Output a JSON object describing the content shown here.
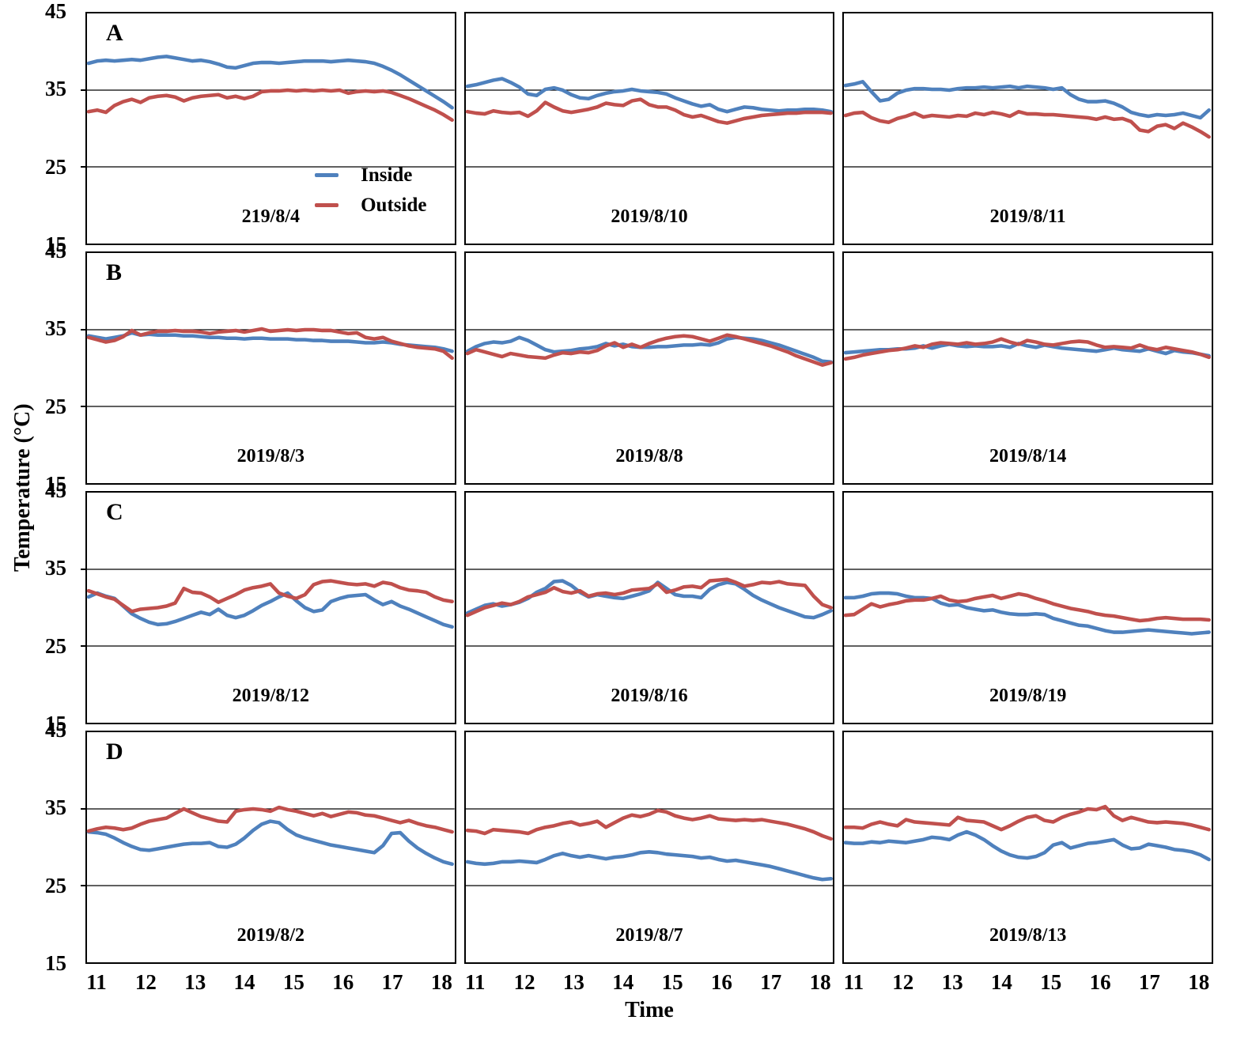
{
  "figure": {
    "y_axis_label": "Temperature (°C)",
    "x_axis_label": "Time"
  },
  "axis": {
    "y_ticks": [
      "45",
      "35",
      "25",
      "15"
    ],
    "x_ticks": [
      "11",
      "12",
      "13",
      "14",
      "15",
      "16",
      "17",
      "18"
    ],
    "gridlines": [
      35,
      25
    ],
    "ylim": [
      15,
      45
    ]
  },
  "legend": {
    "panel_index": 0,
    "items": [
      {
        "label": "Inside",
        "color": "#4F81BD"
      },
      {
        "label": "Outside",
        "color": "#C0504D"
      }
    ]
  },
  "chart_data": {
    "type": "line",
    "title": "",
    "xlabel": "Time",
    "ylabel": "Temperature (°C)",
    "ylim": [
      15,
      45
    ],
    "x_hours_range": [
      11,
      18
    ],
    "sample_interval_minutes": 10,
    "grid": "horizontal lines at 35 and 25",
    "legend_position": "inside panel A (first), lower right",
    "series_names": [
      "Inside",
      "Outside"
    ],
    "panels": [
      {
        "label": "A",
        "date": "219/8/4",
        "inside": [
          38.5,
          38.8,
          38.9,
          38.8,
          38.9,
          39.0,
          38.9,
          39.1,
          39.3,
          39.4,
          39.2,
          39.0,
          38.8,
          38.9,
          38.7,
          38.4,
          38.0,
          37.9,
          38.2,
          38.5,
          38.6,
          38.6,
          38.5,
          38.6,
          38.7,
          38.8,
          38.8,
          38.8,
          38.7,
          38.8,
          38.9,
          38.8,
          38.7,
          38.5,
          38.1,
          37.6,
          37.0,
          36.3,
          35.6,
          34.9,
          34.2,
          33.5,
          32.7
        ],
        "outside": [
          32.2,
          32.4,
          32.1,
          33.0,
          33.5,
          33.8,
          33.4,
          34.0,
          34.2,
          34.3,
          34.1,
          33.6,
          34.0,
          34.2,
          34.3,
          34.4,
          34.0,
          34.2,
          33.9,
          34.2,
          34.8,
          34.9,
          34.9,
          35.0,
          34.9,
          35.0,
          34.9,
          35.0,
          34.9,
          35.0,
          34.6,
          34.8,
          34.9,
          34.8,
          34.9,
          34.7,
          34.3,
          33.9,
          33.4,
          32.9,
          32.4,
          31.8,
          31.1
        ]
      },
      {
        "label": "",
        "date": "2019/8/10",
        "inside": [
          35.5,
          35.7,
          36.0,
          36.3,
          36.5,
          36.0,
          35.4,
          34.5,
          34.3,
          35.1,
          35.3,
          35.0,
          34.4,
          34.0,
          33.9,
          34.3,
          34.6,
          34.8,
          34.9,
          35.1,
          34.9,
          34.8,
          34.7,
          34.5,
          34.0,
          33.6,
          33.2,
          32.9,
          33.1,
          32.5,
          32.2,
          32.5,
          32.8,
          32.7,
          32.5,
          32.4,
          32.3,
          32.4,
          32.4,
          32.5,
          32.5,
          32.4,
          32.2
        ],
        "outside": [
          32.2,
          32.0,
          31.9,
          32.3,
          32.1,
          32.0,
          32.1,
          31.6,
          32.3,
          33.4,
          32.8,
          32.3,
          32.1,
          32.3,
          32.5,
          32.8,
          33.3,
          33.1,
          33.0,
          33.6,
          33.8,
          33.1,
          32.8,
          32.8,
          32.4,
          31.8,
          31.5,
          31.7,
          31.3,
          30.9,
          30.7,
          31.0,
          31.3,
          31.5,
          31.7,
          31.8,
          31.9,
          32.0,
          32.0,
          32.1,
          32.1,
          32.1,
          32.0
        ]
      },
      {
        "label": "",
        "date": "2019/8/11",
        "inside": [
          35.6,
          35.8,
          36.1,
          34.8,
          33.6,
          33.8,
          34.6,
          35.0,
          35.2,
          35.2,
          35.1,
          35.1,
          35.0,
          35.2,
          35.3,
          35.3,
          35.4,
          35.3,
          35.4,
          35.5,
          35.3,
          35.5,
          35.4,
          35.3,
          35.1,
          35.3,
          34.4,
          33.8,
          33.5,
          33.5,
          33.6,
          33.3,
          32.8,
          32.1,
          31.8,
          31.6,
          31.8,
          31.7,
          31.8,
          32.0,
          31.7,
          31.4,
          32.4
        ],
        "outside": [
          31.7,
          32.0,
          32.1,
          31.4,
          31.0,
          30.8,
          31.3,
          31.6,
          32.0,
          31.5,
          31.7,
          31.6,
          31.5,
          31.7,
          31.6,
          32.0,
          31.8,
          32.1,
          31.9,
          31.6,
          32.2,
          31.9,
          31.9,
          31.8,
          31.8,
          31.7,
          31.6,
          31.5,
          31.4,
          31.2,
          31.5,
          31.2,
          31.3,
          30.9,
          29.8,
          29.6,
          30.3,
          30.5,
          30.0,
          30.7,
          30.2,
          29.6,
          28.9
        ]
      },
      {
        "label": "B",
        "date": "2019/8/3",
        "inside": [
          34.2,
          34.0,
          33.8,
          34.0,
          34.2,
          34.6,
          34.3,
          34.4,
          34.3,
          34.3,
          34.3,
          34.2,
          34.2,
          34.1,
          34.0,
          34.0,
          33.9,
          33.9,
          33.8,
          33.9,
          33.9,
          33.8,
          33.8,
          33.8,
          33.7,
          33.7,
          33.6,
          33.6,
          33.5,
          33.5,
          33.5,
          33.4,
          33.3,
          33.3,
          33.4,
          33.3,
          33.1,
          33.0,
          32.9,
          32.8,
          32.7,
          32.5,
          32.2
        ],
        "outside": [
          34.0,
          33.7,
          33.4,
          33.6,
          34.1,
          34.9,
          34.3,
          34.6,
          34.8,
          34.8,
          34.9,
          34.8,
          34.8,
          34.7,
          34.5,
          34.7,
          34.8,
          34.9,
          34.7,
          34.9,
          35.1,
          34.8,
          34.9,
          35.0,
          34.9,
          35.0,
          35.0,
          34.9,
          34.9,
          34.7,
          34.5,
          34.6,
          34.0,
          33.8,
          34.0,
          33.5,
          33.2,
          32.9,
          32.7,
          32.6,
          32.5,
          32.2,
          31.3
        ]
      },
      {
        "label": "",
        "date": "2019/8/8",
        "inside": [
          32.2,
          32.8,
          33.2,
          33.4,
          33.3,
          33.5,
          34.0,
          33.6,
          33.0,
          32.4,
          32.1,
          32.2,
          32.3,
          32.5,
          32.6,
          32.8,
          33.2,
          32.9,
          33.1,
          32.8,
          32.7,
          32.7,
          32.8,
          32.8,
          32.9,
          33.0,
          33.0,
          33.1,
          33.0,
          33.3,
          33.8,
          34.0,
          33.9,
          33.8,
          33.6,
          33.3,
          33.0,
          32.6,
          32.2,
          31.8,
          31.4,
          30.9,
          30.8
        ],
        "outside": [
          31.9,
          32.4,
          32.1,
          31.8,
          31.5,
          31.9,
          31.7,
          31.5,
          31.4,
          31.3,
          31.7,
          32.0,
          31.9,
          32.1,
          32.0,
          32.3,
          32.9,
          33.3,
          32.7,
          33.1,
          32.7,
          33.2,
          33.6,
          33.9,
          34.1,
          34.2,
          34.1,
          33.8,
          33.5,
          33.9,
          34.3,
          34.1,
          33.8,
          33.5,
          33.2,
          32.9,
          32.5,
          32.1,
          31.6,
          31.2,
          30.8,
          30.4,
          30.7
        ]
      },
      {
        "label": "",
        "date": "2019/8/14",
        "inside": [
          32.0,
          32.1,
          32.2,
          32.3,
          32.4,
          32.4,
          32.5,
          32.5,
          32.6,
          32.9,
          32.6,
          32.9,
          33.1,
          32.9,
          32.8,
          32.9,
          32.8,
          32.8,
          32.9,
          32.7,
          33.2,
          32.9,
          32.7,
          33.0,
          32.8,
          32.6,
          32.5,
          32.4,
          32.3,
          32.2,
          32.4,
          32.6,
          32.4,
          32.3,
          32.2,
          32.5,
          32.2,
          31.9,
          32.3,
          32.1,
          32.0,
          31.8,
          31.6
        ],
        "outside": [
          31.2,
          31.4,
          31.7,
          31.9,
          32.1,
          32.3,
          32.4,
          32.6,
          32.9,
          32.7,
          33.1,
          33.3,
          33.2,
          33.1,
          33.3,
          33.1,
          33.2,
          33.4,
          33.8,
          33.4,
          33.1,
          33.6,
          33.4,
          33.1,
          33.0,
          33.2,
          33.4,
          33.5,
          33.4,
          33.0,
          32.7,
          32.8,
          32.7,
          32.6,
          33.0,
          32.6,
          32.4,
          32.7,
          32.5,
          32.3,
          32.1,
          31.8,
          31.4
        ]
      },
      {
        "label": "C",
        "date": "2019/8/12",
        "inside": [
          31.4,
          31.9,
          31.5,
          31.2,
          30.2,
          29.2,
          28.6,
          28.1,
          27.8,
          27.9,
          28.2,
          28.6,
          29.0,
          29.4,
          29.1,
          29.8,
          29.0,
          28.7,
          29.0,
          29.6,
          30.3,
          30.8,
          31.4,
          31.9,
          30.9,
          30.0,
          29.5,
          29.7,
          30.8,
          31.2,
          31.5,
          31.6,
          31.7,
          31.0,
          30.4,
          30.8,
          30.2,
          29.8,
          29.3,
          28.8,
          28.3,
          27.8,
          27.5
        ],
        "outside": [
          32.2,
          31.8,
          31.4,
          31.1,
          30.3,
          29.5,
          29.8,
          29.9,
          30.0,
          30.2,
          30.6,
          32.5,
          32.0,
          31.9,
          31.4,
          30.7,
          31.2,
          31.7,
          32.3,
          32.6,
          32.8,
          33.1,
          31.9,
          31.5,
          31.2,
          31.7,
          33.0,
          33.4,
          33.5,
          33.3,
          33.1,
          33.0,
          33.1,
          32.8,
          33.3,
          33.1,
          32.6,
          32.3,
          32.2,
          32.0,
          31.4,
          31.0,
          30.8
        ]
      },
      {
        "label": "",
        "date": "2019/8/16",
        "inside": [
          29.3,
          29.8,
          30.3,
          30.5,
          30.2,
          30.4,
          30.7,
          31.2,
          32.0,
          32.5,
          33.4,
          33.5,
          32.9,
          32.0,
          31.4,
          31.7,
          31.5,
          31.3,
          31.2,
          31.5,
          31.8,
          32.2,
          33.3,
          32.5,
          31.7,
          31.5,
          31.5,
          31.3,
          32.4,
          33.0,
          33.3,
          33.1,
          32.4,
          31.6,
          31.0,
          30.5,
          30.0,
          29.6,
          29.2,
          28.8,
          28.7,
          29.1,
          29.6
        ],
        "outside": [
          29.0,
          29.5,
          30.0,
          30.3,
          30.6,
          30.4,
          30.8,
          31.4,
          31.7,
          32.0,
          32.6,
          32.1,
          31.9,
          32.2,
          31.5,
          31.8,
          31.9,
          31.7,
          31.9,
          32.3,
          32.4,
          32.5,
          33.1,
          32.0,
          32.3,
          32.7,
          32.8,
          32.6,
          33.5,
          33.6,
          33.7,
          33.3,
          32.8,
          33.0,
          33.3,
          33.2,
          33.4,
          33.1,
          33.0,
          32.9,
          31.5,
          30.4,
          30.0
        ]
      },
      {
        "label": "",
        "date": "2019/8/19",
        "inside": [
          31.3,
          31.3,
          31.5,
          31.8,
          31.9,
          31.9,
          31.8,
          31.5,
          31.3,
          31.3,
          31.2,
          30.6,
          30.3,
          30.4,
          30.0,
          29.8,
          29.6,
          29.7,
          29.4,
          29.2,
          29.1,
          29.1,
          29.2,
          29.1,
          28.6,
          28.3,
          28.0,
          27.7,
          27.6,
          27.3,
          27.0,
          26.8,
          26.8,
          26.9,
          27.0,
          27.1,
          27.0,
          26.9,
          26.8,
          26.7,
          26.6,
          26.7,
          26.8
        ],
        "outside": [
          29.0,
          29.1,
          29.8,
          30.5,
          30.1,
          30.4,
          30.6,
          30.9,
          31.0,
          31.0,
          31.2,
          31.5,
          31.0,
          30.8,
          30.9,
          31.2,
          31.4,
          31.6,
          31.2,
          31.5,
          31.8,
          31.6,
          31.2,
          30.9,
          30.5,
          30.2,
          29.9,
          29.7,
          29.5,
          29.2,
          29.0,
          28.9,
          28.7,
          28.5,
          28.3,
          28.4,
          28.6,
          28.7,
          28.6,
          28.5,
          28.5,
          28.5,
          28.4
        ]
      },
      {
        "label": "D",
        "date": "2019/8/2",
        "inside": [
          32.0,
          31.9,
          31.7,
          31.2,
          30.6,
          30.1,
          29.7,
          29.6,
          29.8,
          30.0,
          30.2,
          30.4,
          30.5,
          30.5,
          30.6,
          30.1,
          30.0,
          30.4,
          31.2,
          32.2,
          33.0,
          33.4,
          33.2,
          32.3,
          31.6,
          31.2,
          30.9,
          30.6,
          30.3,
          30.1,
          29.9,
          29.7,
          29.5,
          29.3,
          30.2,
          31.8,
          31.9,
          30.8,
          29.9,
          29.2,
          28.6,
          28.1,
          27.8
        ],
        "outside": [
          32.1,
          32.4,
          32.6,
          32.5,
          32.3,
          32.5,
          33.0,
          33.4,
          33.6,
          33.8,
          34.4,
          35.0,
          34.5,
          34.0,
          33.7,
          33.4,
          33.3,
          34.7,
          34.9,
          35.0,
          34.9,
          34.7,
          35.2,
          34.9,
          34.7,
          34.4,
          34.1,
          34.4,
          34.0,
          34.3,
          34.6,
          34.5,
          34.2,
          34.1,
          33.8,
          33.5,
          33.2,
          33.5,
          33.1,
          32.8,
          32.6,
          32.3,
          32.0
        ]
      },
      {
        "label": "",
        "date": "2019/8/7",
        "inside": [
          28.1,
          27.9,
          27.8,
          27.9,
          28.1,
          28.1,
          28.2,
          28.1,
          28.0,
          28.4,
          28.9,
          29.2,
          28.9,
          28.7,
          28.9,
          28.7,
          28.5,
          28.7,
          28.8,
          29.0,
          29.3,
          29.4,
          29.3,
          29.1,
          29.0,
          28.9,
          28.8,
          28.6,
          28.7,
          28.4,
          28.2,
          28.3,
          28.1,
          27.9,
          27.7,
          27.5,
          27.2,
          26.9,
          26.6,
          26.3,
          26.0,
          25.8,
          25.9
        ],
        "outside": [
          32.2,
          32.1,
          31.8,
          32.3,
          32.2,
          32.1,
          32.0,
          31.8,
          32.3,
          32.6,
          32.8,
          33.1,
          33.3,
          32.9,
          33.1,
          33.4,
          32.6,
          33.2,
          33.8,
          34.2,
          34.0,
          34.3,
          34.8,
          34.6,
          34.1,
          33.8,
          33.6,
          33.8,
          34.1,
          33.7,
          33.6,
          33.5,
          33.6,
          33.5,
          33.6,
          33.4,
          33.2,
          33.0,
          32.7,
          32.4,
          32.0,
          31.5,
          31.1
        ]
      },
      {
        "label": "",
        "date": "2019/8/13",
        "inside": [
          30.6,
          30.5,
          30.5,
          30.7,
          30.6,
          30.8,
          30.7,
          30.6,
          30.8,
          31.0,
          31.3,
          31.2,
          31.0,
          31.6,
          32.0,
          31.6,
          31.0,
          30.2,
          29.5,
          29.0,
          28.7,
          28.6,
          28.8,
          29.3,
          30.3,
          30.6,
          29.9,
          30.2,
          30.5,
          30.6,
          30.8,
          31.0,
          30.3,
          29.8,
          29.9,
          30.4,
          30.2,
          30.0,
          29.7,
          29.6,
          29.4,
          29.0,
          28.4
        ],
        "outside": [
          32.6,
          32.6,
          32.5,
          33.0,
          33.3,
          33.0,
          32.8,
          33.6,
          33.3,
          33.2,
          33.1,
          33.0,
          32.9,
          33.9,
          33.5,
          33.4,
          33.3,
          32.8,
          32.3,
          32.8,
          33.4,
          33.9,
          34.1,
          33.5,
          33.3,
          33.9,
          34.3,
          34.6,
          35.0,
          34.9,
          35.3,
          34.1,
          33.5,
          33.9,
          33.6,
          33.3,
          33.2,
          33.3,
          33.2,
          33.1,
          32.9,
          32.6,
          32.3
        ]
      }
    ]
  }
}
